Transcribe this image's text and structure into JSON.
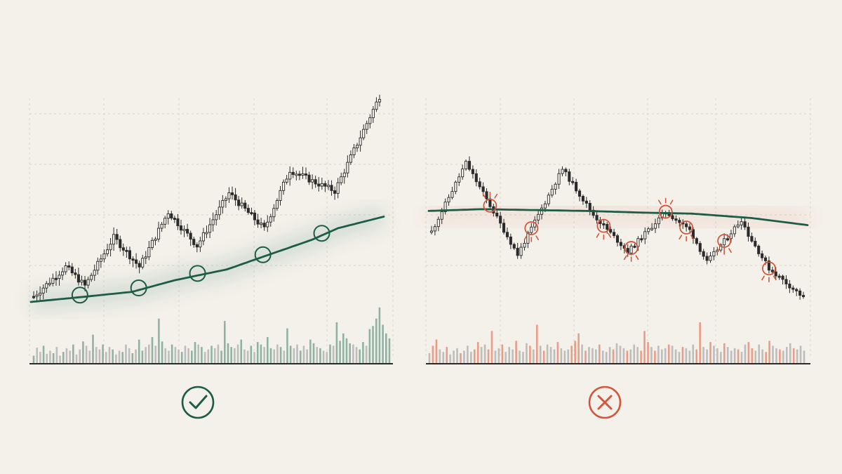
{
  "colors": {
    "background": "#f4f1ea",
    "ink": "#2b2b2b",
    "grid": "#dcd7cd",
    "trend_green": "#1d5c47",
    "volume_green": "#8fb3a3",
    "volume_grey": "#bdbdbd",
    "alert_red": "#d2573c",
    "volume_red": "#ea9c86"
  },
  "chart_data": [
    {
      "type": "candlestick",
      "panel": "left",
      "moving_average": [
        [
          0,
          0.0
        ],
        [
          16,
          0.035
        ],
        [
          31,
          0.07
        ],
        [
          44,
          0.15
        ],
        [
          60,
          0.225
        ],
        [
          72,
          0.32
        ],
        [
          86,
          0.43
        ],
        [
          94,
          0.51
        ],
        [
          108,
          0.59
        ]
      ],
      "price": [
        [
          0,
          0.02
        ],
        [
          10,
          0.16
        ],
        [
          16,
          0.07
        ],
        [
          25,
          0.3
        ],
        [
          33,
          0.16
        ],
        [
          42,
          0.42
        ],
        [
          51,
          0.26
        ],
        [
          61,
          0.51
        ],
        [
          72,
          0.34
        ],
        [
          80,
          0.62
        ],
        [
          88,
          0.56
        ],
        [
          94,
          0.52
        ],
        [
          108,
          0.97
        ]
      ],
      "touch_points": [
        15,
        33,
        51,
        71,
        89
      ],
      "volume": [
        0.12,
        0.25,
        0.18,
        0.28,
        0.15,
        0.2,
        0.16,
        0.26,
        0.12,
        0.18,
        0.24,
        0.2,
        0.3,
        0.14,
        0.22,
        0.35,
        0.28,
        0.2,
        0.46,
        0.26,
        0.22,
        0.3,
        0.18,
        0.26,
        0.22,
        0.14,
        0.2,
        0.18,
        0.3,
        0.24,
        0.16,
        0.22,
        0.38,
        0.2,
        0.26,
        0.3,
        0.42,
        0.28,
        0.72,
        0.35,
        0.24,
        0.2,
        0.3,
        0.26,
        0.22,
        0.18,
        0.28,
        0.24,
        0.2,
        0.34,
        0.3,
        0.26,
        0.18,
        0.22,
        0.28,
        0.24,
        0.3,
        0.2,
        0.68,
        0.32,
        0.26,
        0.24,
        0.3,
        0.38,
        0.22,
        0.2,
        0.28,
        0.18,
        0.34,
        0.3,
        0.26,
        0.42,
        0.24,
        0.22,
        0.3,
        0.26,
        0.2,
        0.56,
        0.28,
        0.24,
        0.3,
        0.2,
        0.28,
        0.22,
        0.38,
        0.32,
        0.26,
        0.24,
        0.2,
        0.18,
        0.3,
        0.28,
        0.66,
        0.36,
        0.48,
        0.4,
        0.32,
        0.3,
        0.26,
        0.22,
        0.34,
        0.28,
        0.55,
        0.6,
        0.72,
        0.9,
        0.62,
        0.48,
        0.4
      ]
    },
    {
      "type": "candlestick",
      "panel": "right",
      "moving_average": [
        [
          0,
          0.6
        ],
        [
          15,
          0.62
        ],
        [
          30,
          0.61
        ],
        [
          45,
          0.6
        ],
        [
          62,
          0.58
        ],
        [
          75,
          0.57
        ],
        [
          92,
          0.52
        ],
        [
          108,
          0.44
        ]
      ],
      "price": [
        [
          0,
          0.45
        ],
        [
          10,
          0.9
        ],
        [
          20,
          0.5
        ],
        [
          25,
          0.3
        ],
        [
          38,
          0.86
        ],
        [
          47,
          0.56
        ],
        [
          57,
          0.32
        ],
        [
          68,
          0.58
        ],
        [
          75,
          0.46
        ],
        [
          80,
          0.25
        ],
        [
          90,
          0.53
        ],
        [
          92,
          0.43
        ],
        [
          98,
          0.21
        ],
        [
          108,
          0.02
        ]
      ],
      "failed_touch_points": [
        17,
        29,
        50,
        58,
        68,
        74,
        85,
        98
      ],
      "volume": [
        0.16,
        0.28,
        0.38,
        0.22,
        0.18,
        0.26,
        0.14,
        0.2,
        0.24,
        0.16,
        0.2,
        0.28,
        0.18,
        0.22,
        0.34,
        0.26,
        0.3,
        0.22,
        0.52,
        0.2,
        0.24,
        0.3,
        0.18,
        0.26,
        0.22,
        0.36,
        0.2,
        0.18,
        0.32,
        0.28,
        0.22,
        0.62,
        0.28,
        0.2,
        0.3,
        0.26,
        0.22,
        0.34,
        0.24,
        0.2,
        0.22,
        0.28,
        0.36,
        0.48,
        0.3,
        0.2,
        0.26,
        0.24,
        0.22,
        0.3,
        0.2,
        0.18,
        0.26,
        0.22,
        0.32,
        0.28,
        0.24,
        0.2,
        0.22,
        0.3,
        0.26,
        0.2,
        0.52,
        0.34,
        0.26,
        0.2,
        0.28,
        0.22,
        0.24,
        0.3,
        0.28,
        0.22,
        0.18,
        0.26,
        0.24,
        0.2,
        0.3,
        0.22,
        0.66,
        0.26,
        0.22,
        0.34,
        0.28,
        0.24,
        0.18,
        0.32,
        0.26,
        0.2,
        0.24,
        0.22,
        0.18,
        0.3,
        0.34,
        0.24,
        0.2,
        0.3,
        0.22,
        0.18,
        0.36,
        0.28,
        0.24,
        0.22,
        0.2,
        0.26,
        0.32,
        0.24,
        0.22,
        0.28,
        0.2
      ]
    }
  ]
}
